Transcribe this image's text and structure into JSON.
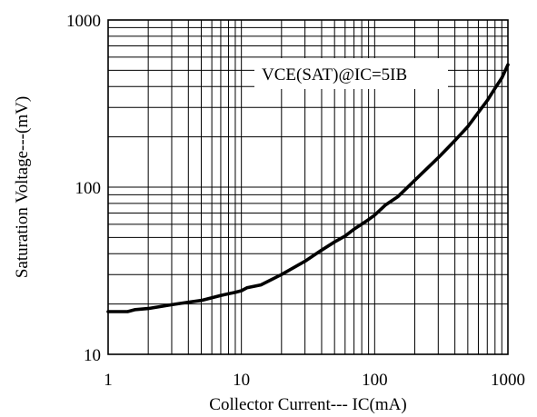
{
  "chart_data": {
    "type": "line",
    "xlabel": "Collector Current--- IC(mA)",
    "ylabel": "Saturation Voltage---(mV)",
    "x_scale": "log",
    "y_scale": "log",
    "xlim": [
      1,
      1000
    ],
    "ylim": [
      10,
      1000
    ],
    "x_ticks": [
      1,
      10,
      100,
      1000
    ],
    "x_tick_labels": [
      "1",
      "10",
      "100",
      "1000"
    ],
    "y_ticks": [
      10,
      100,
      1000
    ],
    "y_tick_labels": [
      "10",
      "100",
      "1000"
    ],
    "grid": true,
    "annotation": "VCE(SAT)@IC=5IB",
    "series": [
      {
        "x": [
          1,
          1.4,
          1.6,
          2,
          3,
          4,
          5,
          7,
          9,
          10,
          11,
          14,
          20,
          30,
          40,
          50,
          60,
          70,
          80,
          90,
          100,
          120,
          150,
          200,
          300,
          400,
          500,
          600,
          700,
          800,
          900,
          1000
        ],
        "y": [
          18,
          18,
          18.5,
          18.8,
          19.8,
          20.5,
          21,
          22.5,
          23.5,
          24,
          25,
          26,
          30,
          36,
          42,
          47,
          51,
          56,
          60,
          64,
          68,
          78,
          88,
          110,
          150,
          190,
          230,
          280,
          330,
          390,
          450,
          540
        ]
      }
    ]
  }
}
